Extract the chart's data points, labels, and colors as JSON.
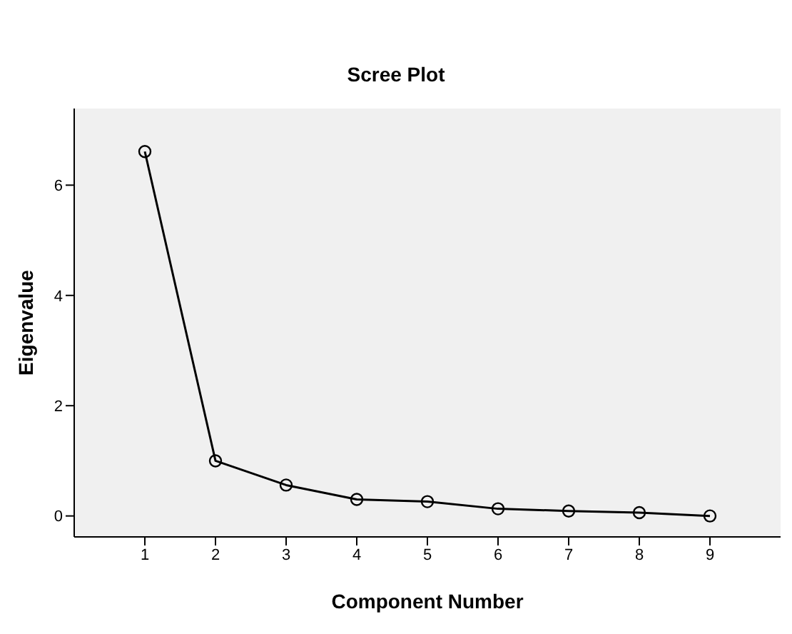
{
  "chart_data": {
    "type": "line",
    "title": "Scree Plot",
    "xlabel": "Component Number",
    "ylabel": "Eigenvalue",
    "x": [
      1,
      2,
      3,
      4,
      5,
      6,
      7,
      8,
      9
    ],
    "series": [
      {
        "color": "#000000",
        "values": [
          6.61,
          1.0,
          0.56,
          0.3,
          0.26,
          0.13,
          0.09,
          0.06,
          0.0
        ]
      }
    ],
    "xlim": [
      0,
      10
    ],
    "xticks": [
      1,
      2,
      3,
      4,
      5,
      6,
      7,
      8,
      9
    ],
    "ylim": [
      -0.38,
      7.39
    ],
    "yticks": [
      0,
      2,
      4,
      6
    ],
    "grid": false,
    "legend": false,
    "marker": "circle",
    "line_style": "solid"
  }
}
